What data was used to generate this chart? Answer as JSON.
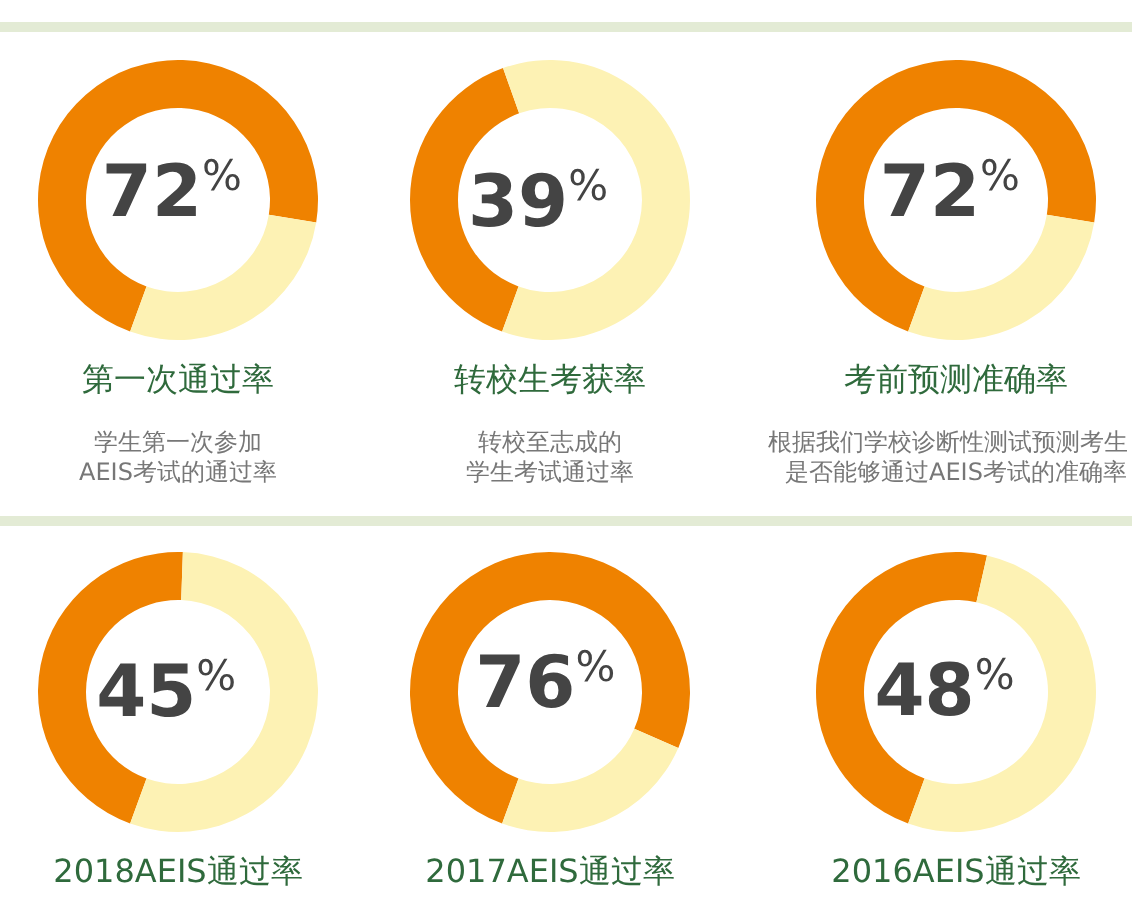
{
  "chart_data": [
    {
      "type": "donut",
      "title": "第一次通过率",
      "annotations": [
        "学生第一次参加",
        "AEIS考试的通过率"
      ],
      "categories": [
        null,
        null
      ],
      "values": [
        72,
        28
      ],
      "colors": [
        "#ef8200",
        "#fdf2b4"
      ],
      "value_labels": [
        "72%",
        null
      ]
    },
    {
      "type": "donut",
      "title": "转校生考获率",
      "annotations": [
        "转校至志成的",
        "学生考试通过率"
      ],
      "categories": [
        null,
        null
      ],
      "values": [
        39,
        61
      ],
      "colors": [
        "#ef8200",
        "#fdf2b4"
      ],
      "value_labels": [
        "39%",
        null
      ]
    },
    {
      "type": "donut",
      "title": "考前预测准确率",
      "annotations": [
        "根据我们学校诊断性测试预测考生",
        "是否能够通过AEIS考试的准确率"
      ],
      "categories": [
        null,
        null
      ],
      "values": [
        72,
        28
      ],
      "colors": [
        "#ef8200",
        "#fdf2b4"
      ],
      "value_labels": [
        "72%",
        null
      ]
    },
    {
      "type": "donut",
      "title": "2018AEIS通过率",
      "categories": [
        null,
        null
      ],
      "values": [
        45,
        55
      ],
      "colors": [
        "#ef8200",
        "#fdf2b4"
      ],
      "value_labels": [
        "45%",
        null
      ]
    },
    {
      "type": "donut",
      "title": "2017AEIS通过率",
      "categories": [
        null,
        null
      ],
      "values": [
        76,
        24
      ],
      "colors": [
        "#ef8200",
        "#fdf2b4"
      ],
      "value_labels": [
        "76%",
        null
      ]
    },
    {
      "type": "donut",
      "title": "2016AEIS通过率",
      "categories": [
        null,
        null
      ],
      "values": [
        48,
        52
      ],
      "colors": [
        "#ef8200",
        "#fdf2b4"
      ],
      "value_labels": [
        "48%",
        null
      ]
    }
  ]
}
